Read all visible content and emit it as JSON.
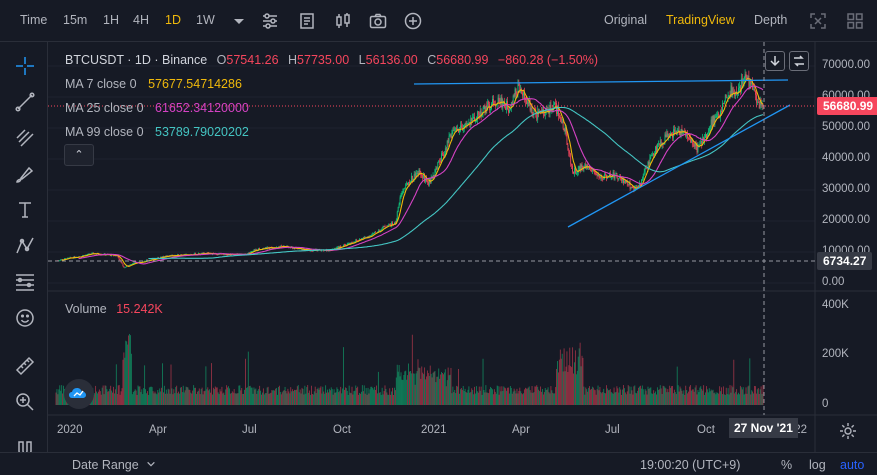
{
  "toolbar": {
    "time_label": "Time",
    "intervals": [
      "15m",
      "1H",
      "4H",
      "1D",
      "1W"
    ],
    "active_interval": "1D",
    "views": [
      "Original",
      "TradingView",
      "Depth"
    ],
    "active_view": "TradingView"
  },
  "legend": {
    "symbol": "BTCUSDT · 1D · Binance",
    "open_k": "O",
    "open_v": "57541.26",
    "high_k": "H",
    "high_v": "57735.00",
    "low_k": "L",
    "low_v": "56136.00",
    "close_k": "C",
    "close_v": "56680.99",
    "change": "−860.28 (−1.50%)",
    "ma7_label": "MA 7 close 0",
    "ma7_value": "57677.54714286",
    "ma25_label": "MA 25 close 0",
    "ma25_value": "61652.34120000",
    "ma99_label": "MA 99 close 0",
    "ma99_value": "53789.79020202",
    "collapse": "⌃",
    "volume_label": "Volume",
    "volume_value": "15.242K"
  },
  "colors": {
    "up": "#0ecb81",
    "down": "#f6465d",
    "ma7": "#f0b90b",
    "ma25": "#d442c3",
    "ma99": "#44c5c3",
    "trendline": "#2196f3",
    "bg": "#161a25"
  },
  "price_axis": {
    "ticks": [
      "70000.00",
      "60000.00",
      "50000.00",
      "40000.00",
      "30000.00",
      "20000.00",
      "10000.00",
      "0.00"
    ],
    "current_price": "56680.99",
    "crosshair_price": "6734.27"
  },
  "volume_axis": {
    "ticks": [
      "400K",
      "200K",
      "0"
    ]
  },
  "time_axis": {
    "ticks": [
      "2020",
      "Apr",
      "Jul",
      "Oct",
      "2021",
      "Apr",
      "Jul",
      "Oct",
      "'22"
    ],
    "crosshair_date": "27 Nov '21"
  },
  "bottom": {
    "date_range": "Date Range",
    "clock": "19:00:20 (UTC+9)",
    "percent": "%",
    "log": "log",
    "auto": "auto"
  },
  "chart_data": {
    "type": "candlestick",
    "title": "BTCUSDT · 1D · Binance",
    "y_range": [
      0,
      72000
    ],
    "series_points_monthly_close": {
      "x": [
        "2020-01",
        "2020-02",
        "2020-03",
        "2020-04",
        "2020-05",
        "2020-06",
        "2020-07",
        "2020-08",
        "2020-09",
        "2020-10",
        "2020-11",
        "2020-12",
        "2021-01",
        "2021-02",
        "2021-03",
        "2021-04",
        "2021-05",
        "2021-06",
        "2021-07",
        "2021-08",
        "2021-09",
        "2021-10",
        "2021-11"
      ],
      "close": [
        9350,
        8600,
        6400,
        8650,
        9450,
        9150,
        11350,
        11650,
        10780,
        13800,
        19700,
        29000,
        33100,
        45200,
        58900,
        57700,
        37300,
        35000,
        41500,
        47100,
        43800,
        61300,
        56680
      ],
      "volume_k": [
        60,
        80,
        280,
        90,
        110,
        70,
        80,
        90,
        70,
        80,
        110,
        150,
        220,
        160,
        120,
        150,
        250,
        180,
        110,
        110,
        120,
        110,
        90
      ]
    },
    "moving_averages": [
      {
        "name": "MA 7 close 0",
        "last": 57677.54714286
      },
      {
        "name": "MA 25 close 0",
        "last": 61652.3412
      },
      {
        "name": "MA 99 close 0",
        "last": 53789.79020202
      }
    ]
  }
}
